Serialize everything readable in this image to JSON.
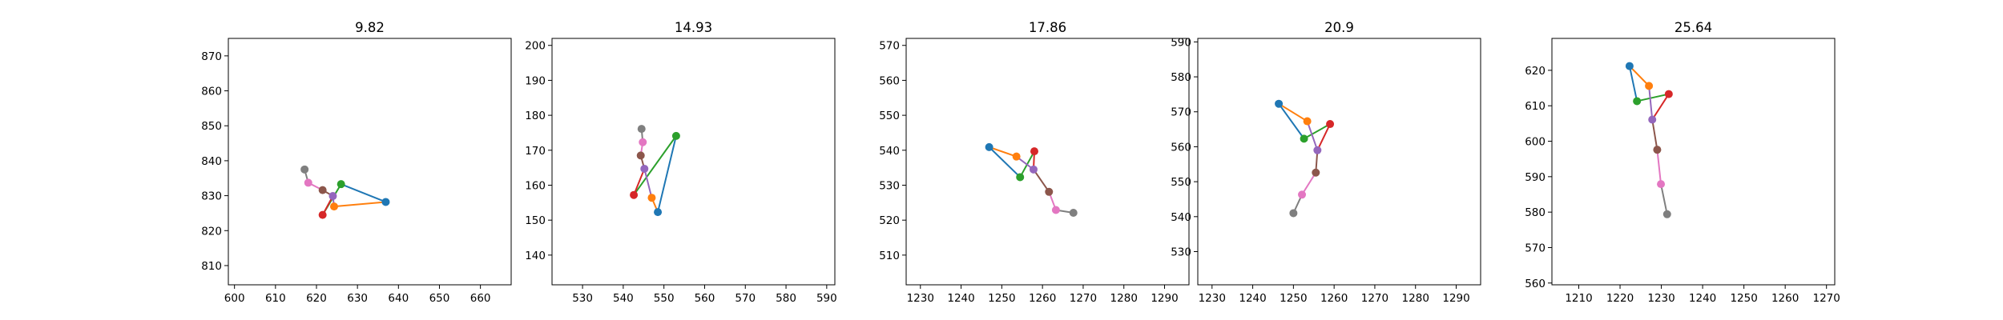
{
  "chart_data": [
    {
      "type": "line",
      "title": "9.82",
      "xlim": [
        598.5,
        667.5
      ],
      "ylim": [
        804.5,
        875.0
      ],
      "xticks": [
        "600",
        "610",
        "620",
        "630",
        "640",
        "650",
        "660"
      ],
      "yticks": [
        "810",
        "820",
        "830",
        "840",
        "850",
        "860",
        "870"
      ],
      "points": [
        [
          636.9,
          828.2
        ],
        [
          626.0,
          833.3
        ],
        [
          624.3,
          826.9
        ],
        [
          621.5,
          824.5
        ],
        [
          624.0,
          829.9
        ],
        [
          621.5,
          831.6
        ],
        [
          618.0,
          833.7
        ],
        [
          617.1,
          837.5
        ]
      ],
      "segments": [
        [
          0,
          1
        ],
        [
          0,
          2
        ],
        [
          1,
          3
        ],
        [
          3,
          4
        ],
        [
          4,
          2
        ],
        [
          4,
          5
        ],
        [
          5,
          6
        ],
        [
          6,
          7
        ]
      ]
    },
    {
      "type": "line",
      "title": "14.93",
      "xlim": [
        522.5,
        592.0
      ],
      "ylim": [
        131.5,
        202.0
      ],
      "xticks": [
        "530",
        "540",
        "550",
        "560",
        "570",
        "580",
        "590"
      ],
      "yticks": [
        "140",
        "150",
        "160",
        "170",
        "180",
        "190",
        "200"
      ],
      "points": [
        [
          548.5,
          152.3
        ],
        [
          553.0,
          174.1
        ],
        [
          547.0,
          156.4
        ],
        [
          542.6,
          157.2
        ],
        [
          545.2,
          164.7
        ],
        [
          544.3,
          168.5
        ],
        [
          544.8,
          172.3
        ],
        [
          544.5,
          176.1
        ]
      ],
      "segments": [
        [
          0,
          1
        ],
        [
          0,
          2
        ],
        [
          1,
          3
        ],
        [
          3,
          4
        ],
        [
          4,
          2
        ],
        [
          4,
          5
        ],
        [
          5,
          6
        ],
        [
          6,
          7
        ]
      ]
    },
    {
      "type": "line",
      "title": "17.86",
      "xlim": [
        1226.5,
        1296.0
      ],
      "ylim": [
        501.5,
        572.0
      ],
      "xticks": [
        "1230",
        "1240",
        "1250",
        "1260",
        "1270",
        "1280",
        "1290"
      ],
      "yticks": [
        "510",
        "520",
        "530",
        "540",
        "550",
        "560",
        "570"
      ],
      "points": [
        [
          1246.9,
          540.9
        ],
        [
          1254.5,
          532.3
        ],
        [
          1253.6,
          538.2
        ],
        [
          1258.0,
          539.7
        ],
        [
          1257.8,
          534.5
        ],
        [
          1261.6,
          528.1
        ],
        [
          1263.3,
          522.9
        ],
        [
          1267.6,
          522.1
        ]
      ],
      "segments": [
        [
          0,
          1
        ],
        [
          0,
          2
        ],
        [
          1,
          3
        ],
        [
          3,
          4
        ],
        [
          4,
          2
        ],
        [
          4,
          5
        ],
        [
          5,
          6
        ],
        [
          6,
          7
        ]
      ]
    },
    {
      "type": "line",
      "title": "20.9",
      "xlim": [
        1226.5,
        1296.0
      ],
      "ylim": [
        520.5,
        591.0
      ],
      "xticks": [
        "1230",
        "1240",
        "1250",
        "1260",
        "1270",
        "1280",
        "1290"
      ],
      "yticks": [
        "530",
        "540",
        "550",
        "560",
        "570",
        "580",
        "590"
      ],
      "points": [
        [
          1246.4,
          572.3
        ],
        [
          1252.6,
          562.3
        ],
        [
          1253.4,
          567.3
        ],
        [
          1259.0,
          566.5
        ],
        [
          1255.9,
          559.0
        ],
        [
          1255.5,
          552.6
        ],
        [
          1252.1,
          546.3
        ],
        [
          1250.0,
          541.0
        ]
      ],
      "segments": [
        [
          0,
          1
        ],
        [
          0,
          2
        ],
        [
          1,
          3
        ],
        [
          3,
          4
        ],
        [
          4,
          2
        ],
        [
          4,
          5
        ],
        [
          5,
          6
        ],
        [
          6,
          7
        ]
      ]
    },
    {
      "type": "line",
      "title": "25.64",
      "xlim": [
        1203.5,
        1272.0
      ],
      "ylim": [
        559.5,
        629.0
      ],
      "xticks": [
        "1210",
        "1220",
        "1230",
        "1240",
        "1250",
        "1260",
        "1270"
      ],
      "yticks": [
        "560",
        "570",
        "580",
        "590",
        "600",
        "610",
        "620"
      ],
      "points": [
        [
          1222.3,
          621.2
        ],
        [
          1224.1,
          611.3
        ],
        [
          1227.0,
          615.6
        ],
        [
          1231.8,
          613.3
        ],
        [
          1227.8,
          606.1
        ],
        [
          1229.0,
          597.6
        ],
        [
          1229.9,
          587.9
        ],
        [
          1231.4,
          579.4
        ]
      ],
      "segments": [
        [
          0,
          1
        ],
        [
          0,
          2
        ],
        [
          1,
          3
        ],
        [
          3,
          4
        ],
        [
          4,
          2
        ],
        [
          4,
          5
        ],
        [
          5,
          6
        ],
        [
          6,
          7
        ]
      ]
    }
  ],
  "colors": {
    "segments": [
      "#1f77b4",
      "#ff7f0e",
      "#2ca02c",
      "#d62728",
      "#9467bd",
      "#8c564b",
      "#e377c2",
      "#7f7f7f"
    ],
    "points": [
      "#1f77b4",
      "#2ca02c",
      "#ff7f0e",
      "#d62728",
      "#9467bd",
      "#8c564b",
      "#e377c2",
      "#7f7f7f"
    ],
    "axes": "#000000",
    "background": "#ffffff"
  }
}
